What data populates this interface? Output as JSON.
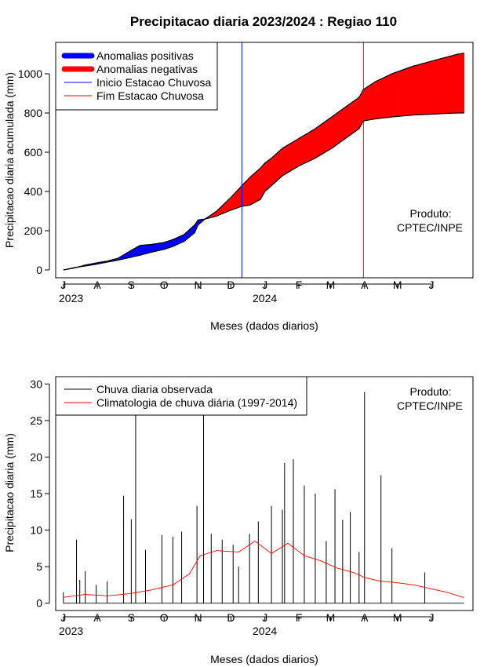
{
  "title": "Precipitacao diaria 2023/2024 : Regiao 110",
  "colors": {
    "positive": "#0000ff",
    "negative": "#ff0000",
    "start_line": "#0000ff",
    "end_line": "#ff0000",
    "observed": "#000000",
    "climatology": "#ff0000"
  },
  "chart_data": [
    {
      "type": "area",
      "ylabel": "Precipitacao diaria acumulada (mm)",
      "xlabel": "Meses (dados diarios)",
      "x_tick_labels": [
        "J",
        "A",
        "S",
        "O",
        "N",
        "D",
        "J",
        "F",
        "M",
        "A",
        "M",
        "J"
      ],
      "year_labels": [
        "2023",
        "2024"
      ],
      "y_ticks": [
        0,
        200,
        400,
        600,
        800,
        1000
      ],
      "ylim": [
        -40,
        1160
      ],
      "x_unit": "day index from 1 Jul 2023",
      "xlim": [
        -7,
        374
      ],
      "legend": [
        "Anomalias positivas",
        "Anomalias negativas",
        "Inicio Estacao Chuvosa",
        "Fim Estacao Chuvosa"
      ],
      "legend_position": "top-left",
      "annotation": [
        "Produto:",
        "CPTEC/INPE"
      ],
      "rainy_season_start_day": 163,
      "rainy_season_end_day": 274,
      "series": [
        {
          "name": "observed_accumulated",
          "x": [
            0,
            10,
            20,
            31,
            40,
            50,
            62,
            70,
            80,
            92,
            100,
            110,
            120,
            123,
            130,
            140,
            153,
            163,
            170,
            180,
            184,
            190,
            200,
            215,
            230,
            245,
            260,
            270,
            274,
            285,
            300,
            320,
            340,
            350,
            360,
            366
          ],
          "values": [
            0,
            10,
            25,
            37,
            45,
            60,
            100,
            125,
            130,
            140,
            155,
            180,
            230,
            255,
            260,
            275,
            305,
            325,
            330,
            360,
            400,
            430,
            480,
            530,
            570,
            620,
            680,
            720,
            760,
            770,
            780,
            790,
            795,
            798,
            800,
            800
          ]
        },
        {
          "name": "climatology_accumulated",
          "x": [
            0,
            10,
            20,
            31,
            40,
            50,
            62,
            70,
            80,
            92,
            100,
            110,
            120,
            123,
            130,
            140,
            153,
            163,
            170,
            180,
            184,
            190,
            200,
            215,
            230,
            245,
            260,
            270,
            274,
            285,
            300,
            320,
            340,
            350,
            360,
            366
          ],
          "values": [
            0,
            12,
            20,
            30,
            40,
            50,
            65,
            75,
            90,
            105,
            120,
            145,
            190,
            230,
            262,
            300,
            370,
            430,
            470,
            520,
            545,
            570,
            620,
            670,
            720,
            780,
            840,
            880,
            920,
            960,
            1000,
            1040,
            1070,
            1085,
            1100,
            1105
          ]
        }
      ]
    },
    {
      "type": "line",
      "ylabel": "Precipitacao diaria (mm)",
      "xlabel": "Meses (dados diarios)",
      "x_tick_labels": [
        "J",
        "A",
        "S",
        "O",
        "N",
        "D",
        "J",
        "F",
        "M",
        "A",
        "M",
        "J"
      ],
      "year_labels": [
        "2023",
        "2024"
      ],
      "y_ticks": [
        0,
        5,
        10,
        15,
        20,
        25,
        30
      ],
      "ylim": [
        -1,
        31
      ],
      "x_unit": "day index from 1 Jul 2023",
      "xlim": [
        -7,
        374
      ],
      "legend": [
        "Chuva diaria observada",
        "Climatologia de chuva diária (1997-2014)"
      ],
      "legend_position": "top-left",
      "annotation": [
        "Produto:",
        "CPTEC/INPE"
      ],
      "series": [
        {
          "name": "observed_daily_peaks",
          "x": [
            0,
            12,
            15,
            20,
            30,
            40,
            55,
            62,
            66,
            75,
            90,
            100,
            108,
            122,
            128,
            135,
            145,
            155,
            160,
            170,
            178,
            190,
            200,
            202,
            210,
            220,
            230,
            240,
            248,
            255,
            262,
            270,
            275,
            290,
            300,
            330
          ],
          "values": [
            1.5,
            8.7,
            3.2,
            4.4,
            2.5,
            3.0,
            14.7,
            11.5,
            25.8,
            7.3,
            9.3,
            9.1,
            9.8,
            13.3,
            25.7,
            9.5,
            8.7,
            8.0,
            5.0,
            9.5,
            11.2,
            13.3,
            12.8,
            19.2,
            19.7,
            16.1,
            15.0,
            8.5,
            15.6,
            11.4,
            12.5,
            7.0,
            28.9,
            17.5,
            7.5,
            4.2
          ]
        },
        {
          "name": "climatology_daily",
          "x": [
            0,
            20,
            40,
            60,
            80,
            100,
            115,
            125,
            140,
            160,
            175,
            190,
            205,
            220,
            235,
            250,
            265,
            275,
            290,
            305,
            320,
            335,
            350,
            365
          ],
          "values": [
            0.8,
            1.2,
            1.0,
            1.3,
            1.8,
            2.5,
            4.0,
            6.5,
            7.2,
            7.0,
            8.5,
            6.8,
            8.2,
            6.5,
            5.8,
            4.8,
            4.2,
            3.5,
            3.0,
            2.8,
            2.5,
            2.0,
            1.5,
            0.8
          ]
        }
      ]
    }
  ]
}
